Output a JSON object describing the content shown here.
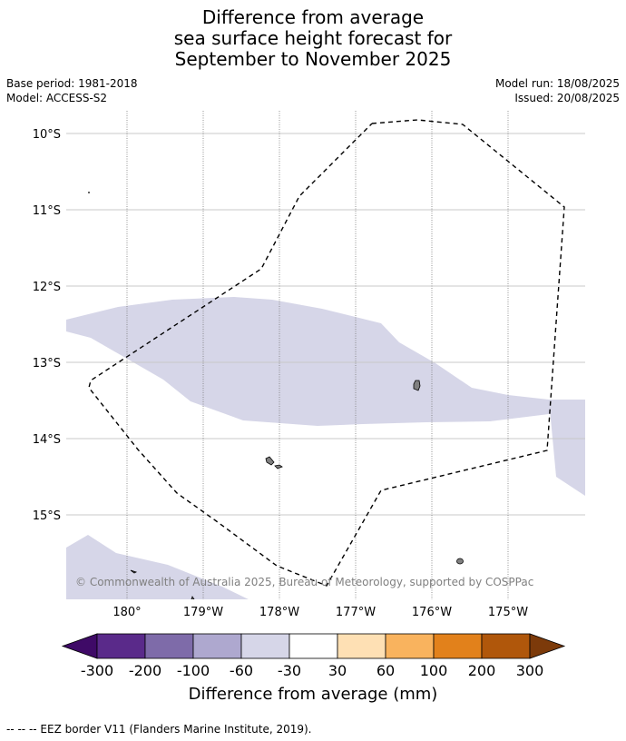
{
  "title": {
    "line1": "Difference from average",
    "line2": "sea surface height forecast for",
    "line3": "September to November 2025"
  },
  "meta": {
    "base_period": "Base period: 1981-2018",
    "model": "Model: ACCESS-S2",
    "model_run": "Model run: 18/08/2025",
    "issued": "Issued: 20/08/2025"
  },
  "map": {
    "lat_labels": [
      "10°S",
      "11°S",
      "12°S",
      "13°S",
      "14°S",
      "15°S"
    ],
    "lon_labels": [
      "180°",
      "179°W",
      "178°W",
      "177°W",
      "176°W",
      "175°W"
    ],
    "attribution": "© Commonwealth of Australia 2025, Bureau of Meteorology, supported by COSPPac",
    "anomaly_fill_color": "#d6d6e8",
    "eez_line_color": "#000000",
    "land_color": "#808080",
    "grid_color": "#c8c8c8"
  },
  "colorbar": {
    "tick_labels": [
      "-300",
      "-200",
      "-100",
      "-60",
      "-30",
      "30",
      "60",
      "100",
      "200",
      "300"
    ],
    "colors": [
      "#3f0a67",
      "#5a2a8a",
      "#7e6ba9",
      "#aea8cf",
      "#d6d6e8",
      "#ffffff",
      "#fee0b4",
      "#f9b35e",
      "#e2811b",
      "#b0570b",
      "#7c3a0a"
    ],
    "label": "Difference from average (mm)"
  },
  "footer": {
    "eez_note": "--  --  -- EEZ border V11 (Flanders Marine Institute, 2019)."
  }
}
